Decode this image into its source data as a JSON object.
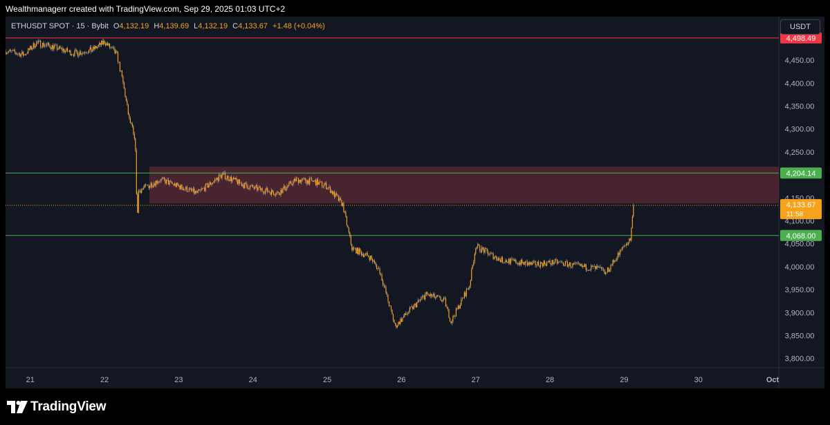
{
  "header": {
    "attribution": "Wealthmanagerr created with TradingView.com, Sep 29, 2025 01:03 UTC+2"
  },
  "legend": {
    "symbol": "ETHUSDT SPOT · 15 · Bybit",
    "open_label": "O",
    "open": "4,132.19",
    "high_label": "H",
    "high": "4,139.69",
    "low_label": "L",
    "low": "4,132.19",
    "close_label": "C",
    "close": "4,133.67",
    "change": "+1.48 (+0.04%)"
  },
  "currency_button": "USDT",
  "colors": {
    "background": "#131722",
    "candle": "#f7a21b",
    "wick": "#cfd3dc",
    "resistance_line": "#f23645",
    "support_line": "#4caf50",
    "zone_fill": "#5a2a33",
    "price_label": "#f7a21b"
  },
  "chart_data": {
    "type": "line",
    "title": "",
    "xlabel": "",
    "ylabel": "",
    "x_ticks": [
      "21",
      "22",
      "23",
      "24",
      "25",
      "26",
      "27",
      "28",
      "29",
      "30",
      "Oct"
    ],
    "y_ticks": [
      "3,800.00",
      "3,850.00",
      "3,900.00",
      "3,950.00",
      "4,000.00",
      "4,050.00",
      "4,100.00",
      "4,150.00",
      "4,200.00",
      "4,250.00",
      "4,300.00",
      "4,350.00",
      "4,400.00",
      "4,450.00"
    ],
    "ylim": [
      3780,
      4545
    ],
    "x_range": [
      "Sep 20 14:00",
      "Oct 1 00:00"
    ],
    "price_path": [
      {
        "x": "Sep 20 14:00",
        "y": 4470
      },
      {
        "x": "Sep 20 20:00",
        "y": 4462
      },
      {
        "x": "Sep 21 00:00",
        "y": 4488
      },
      {
        "x": "Sep 21 06:00",
        "y": 4478
      },
      {
        "x": "Sep 21 12:00",
        "y": 4465
      },
      {
        "x": "Sep 21 18:00",
        "y": 4472
      },
      {
        "x": "Sep 21 22:00",
        "y": 4490
      },
      {
        "x": "Sep 22 02:00",
        "y": 4462
      },
      {
        "x": "Sep 22 04:00",
        "y": 4400
      },
      {
        "x": "Sep 22 06:00",
        "y": 4320
      },
      {
        "x": "Sep 22 07:00",
        "y": 4300
      },
      {
        "x": "Sep 22 08:00",
        "y": 4260
      },
      {
        "x": "Sep 22 08:30",
        "y": 4100
      },
      {
        "x": "Sep 22 09:00",
        "y": 4165
      },
      {
        "x": "Sep 22 16:00",
        "y": 4190
      },
      {
        "x": "Sep 23 04:00",
        "y": 4160
      },
      {
        "x": "Sep 23 12:00",
        "y": 4200
      },
      {
        "x": "Sep 23 20:00",
        "y": 4175
      },
      {
        "x": "Sep 24 06:00",
        "y": 4160
      },
      {
        "x": "Sep 24 12:00",
        "y": 4190
      },
      {
        "x": "Sep 24 18:00",
        "y": 4185
      },
      {
        "x": "Sep 24 22:00",
        "y": 4175
      },
      {
        "x": "Sep 25 03:00",
        "y": 4135
      },
      {
        "x": "Sep 25 06:00",
        "y": 4040
      },
      {
        "x": "Sep 25 12:00",
        "y": 4020
      },
      {
        "x": "Sep 25 15:00",
        "y": 3990
      },
      {
        "x": "Sep 25 20:00",
        "y": 3870
      },
      {
        "x": "Sep 26 00:00",
        "y": 3900
      },
      {
        "x": "Sep 26 06:00",
        "y": 3940
      },
      {
        "x": "Sep 26 12:00",
        "y": 3925
      },
      {
        "x": "Sep 26 14:00",
        "y": 3880
      },
      {
        "x": "Sep 26 20:00",
        "y": 3960
      },
      {
        "x": "Sep 26 22:00",
        "y": 4045
      },
      {
        "x": "Sep 27 06:00",
        "y": 4015
      },
      {
        "x": "Sep 27 16:00",
        "y": 4005
      },
      {
        "x": "Sep 28 00:00",
        "y": 4010
      },
      {
        "x": "Sep 28 08:00",
        "y": 4000
      },
      {
        "x": "Sep 28 14:00",
        "y": 3995
      },
      {
        "x": "Sep 28 16:00",
        "y": 3985
      },
      {
        "x": "Sep 28 22:00",
        "y": 4045
      },
      {
        "x": "Sep 29 00:00",
        "y": 4060
      },
      {
        "x": "Sep 29 01:03",
        "y": 4133.67
      }
    ],
    "levels": [
      {
        "name": "resistance",
        "value": 4498.49,
        "label": "4,498.49",
        "color": "#f23645"
      },
      {
        "name": "zone-top",
        "value": 4204.14,
        "label": "4,204.14",
        "color": "#4caf50"
      },
      {
        "name": "support",
        "value": 4068.0,
        "label": "4,068.00",
        "color": "#4caf50"
      }
    ],
    "zone": {
      "from": 4138,
      "to": 4218
    },
    "current_price": {
      "value": 4133.67,
      "label": "4,133.67",
      "countdown": "11:58"
    },
    "grid": false
  },
  "branding": {
    "name": "TradingView"
  }
}
